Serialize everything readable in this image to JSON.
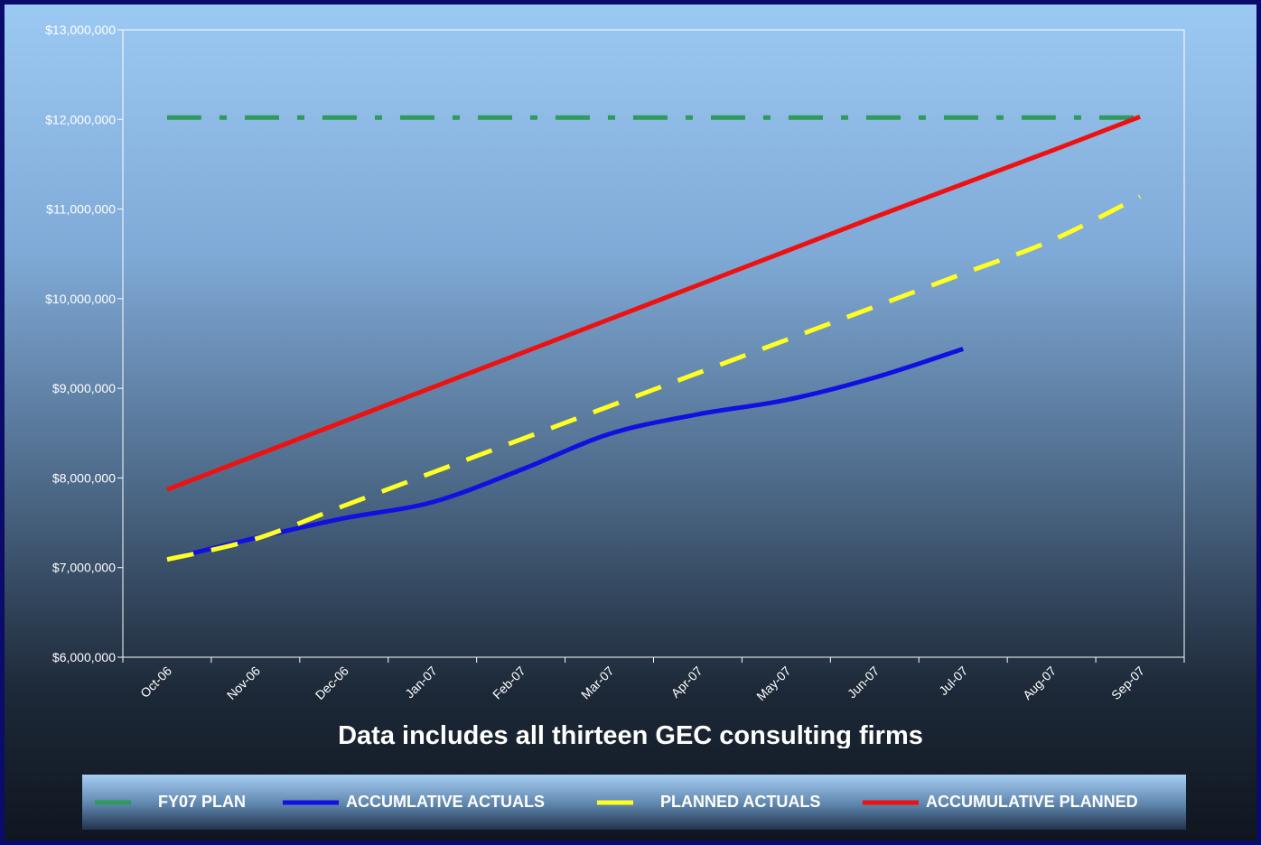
{
  "chart_data": {
    "type": "line",
    "categories": [
      "Oct-06",
      "Nov-06",
      "Dec-06",
      "Jan-07",
      "Feb-07",
      "Mar-07",
      "Apr-07",
      "May-07",
      "Jun-07",
      "Jul-07",
      "Aug-07",
      "Sep-07"
    ],
    "ylim": [
      6000000,
      13000000
    ],
    "yticks": [
      "$6,000,000",
      "$7,000,000",
      "$8,000,000",
      "$9,000,000",
      "$10,000,000",
      "$11,000,000",
      "$12,000,000",
      "$13,000,000"
    ],
    "ytick_values": [
      6000000,
      7000000,
      8000000,
      9000000,
      10000000,
      11000000,
      12000000,
      13000000
    ],
    "grid": false,
    "legend_position": "bottom",
    "series": [
      {
        "name": "FY07 PLAN",
        "color": "#2e9a5c",
        "style": "dashdot",
        "values": [
          12020000,
          12020000,
          12020000,
          12020000,
          12020000,
          12020000,
          12020000,
          12020000,
          12020000,
          12020000,
          12020000,
          12020000
        ]
      },
      {
        "name": "ACCUMLATIVE ACTUALS",
        "color": "#1010e0",
        "style": "solid",
        "values": [
          7090000,
          7330000,
          7550000,
          7730000,
          8090000,
          8490000,
          8710000,
          8870000,
          9120000,
          9440000,
          null,
          null
        ]
      },
      {
        "name": "PLANNED ACTUALS",
        "color": "#ffff22",
        "style": "dashed",
        "values": [
          7090000,
          7320000,
          7690000,
          8060000,
          8430000,
          8800000,
          9170000,
          9540000,
          9910000,
          10280000,
          10650000,
          11140000
        ]
      },
      {
        "name": "ACCUMULATIVE PLANNED",
        "color": "#ee1111",
        "style": "solid",
        "values": [
          7870000,
          8250000,
          8630000,
          9010000,
          9390000,
          9770000,
          10150000,
          10530000,
          10910000,
          11280000,
          11650000,
          12030000
        ]
      }
    ]
  },
  "footnote": "Data includes all thirteen GEC consulting firms"
}
